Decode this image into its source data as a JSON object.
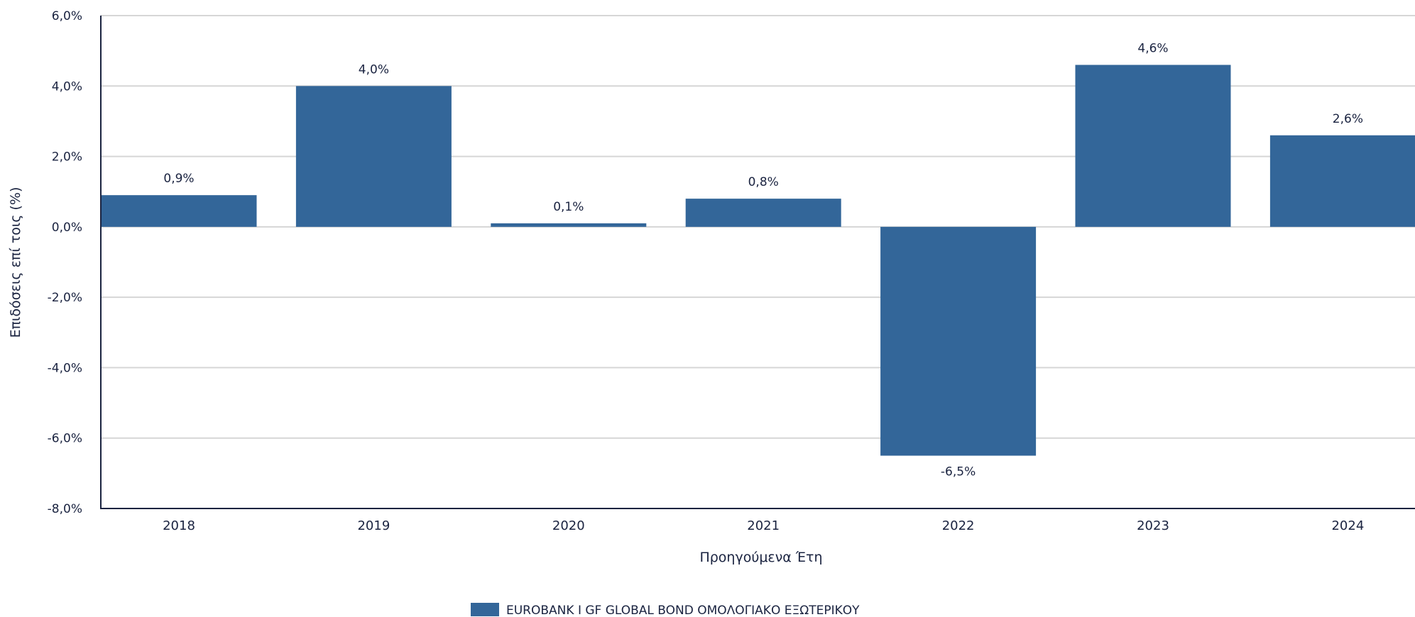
{
  "chart_data": {
    "type": "bar",
    "title": "",
    "xlabel": "Προηγούμενα Έτη",
    "ylabel": "Επιδόσεις επί τοις (%)",
    "ylim": [
      -8,
      6
    ],
    "yticks": [
      6,
      4,
      2,
      0,
      -2,
      -4,
      -6,
      -8
    ],
    "ytick_labels": [
      "6,0%",
      "4,0%",
      "2,0%",
      "0,0%",
      "-2,0%",
      "-4,0%",
      "-6,0%",
      "-8,0%"
    ],
    "categories": [
      "2018",
      "2019",
      "2020",
      "2021",
      "2022",
      "2023",
      "2024"
    ],
    "series": [
      {
        "name": "EUROBANK I GF GLOBAL BOND ΟΜΟΛΟΓΙΑΚΟ ΕΞΩΤΕΡΙΚΟΥ",
        "values": [
          0.9,
          4.0,
          0.1,
          0.8,
          -6.5,
          4.6,
          2.6
        ],
        "labels": [
          "0,9%",
          "4,0%",
          "0,1%",
          "0,8%",
          "-6,5%",
          "4,6%",
          "2,6%"
        ],
        "color": "#336699"
      }
    ],
    "grid": true,
    "legend_position": "bottom-center"
  }
}
